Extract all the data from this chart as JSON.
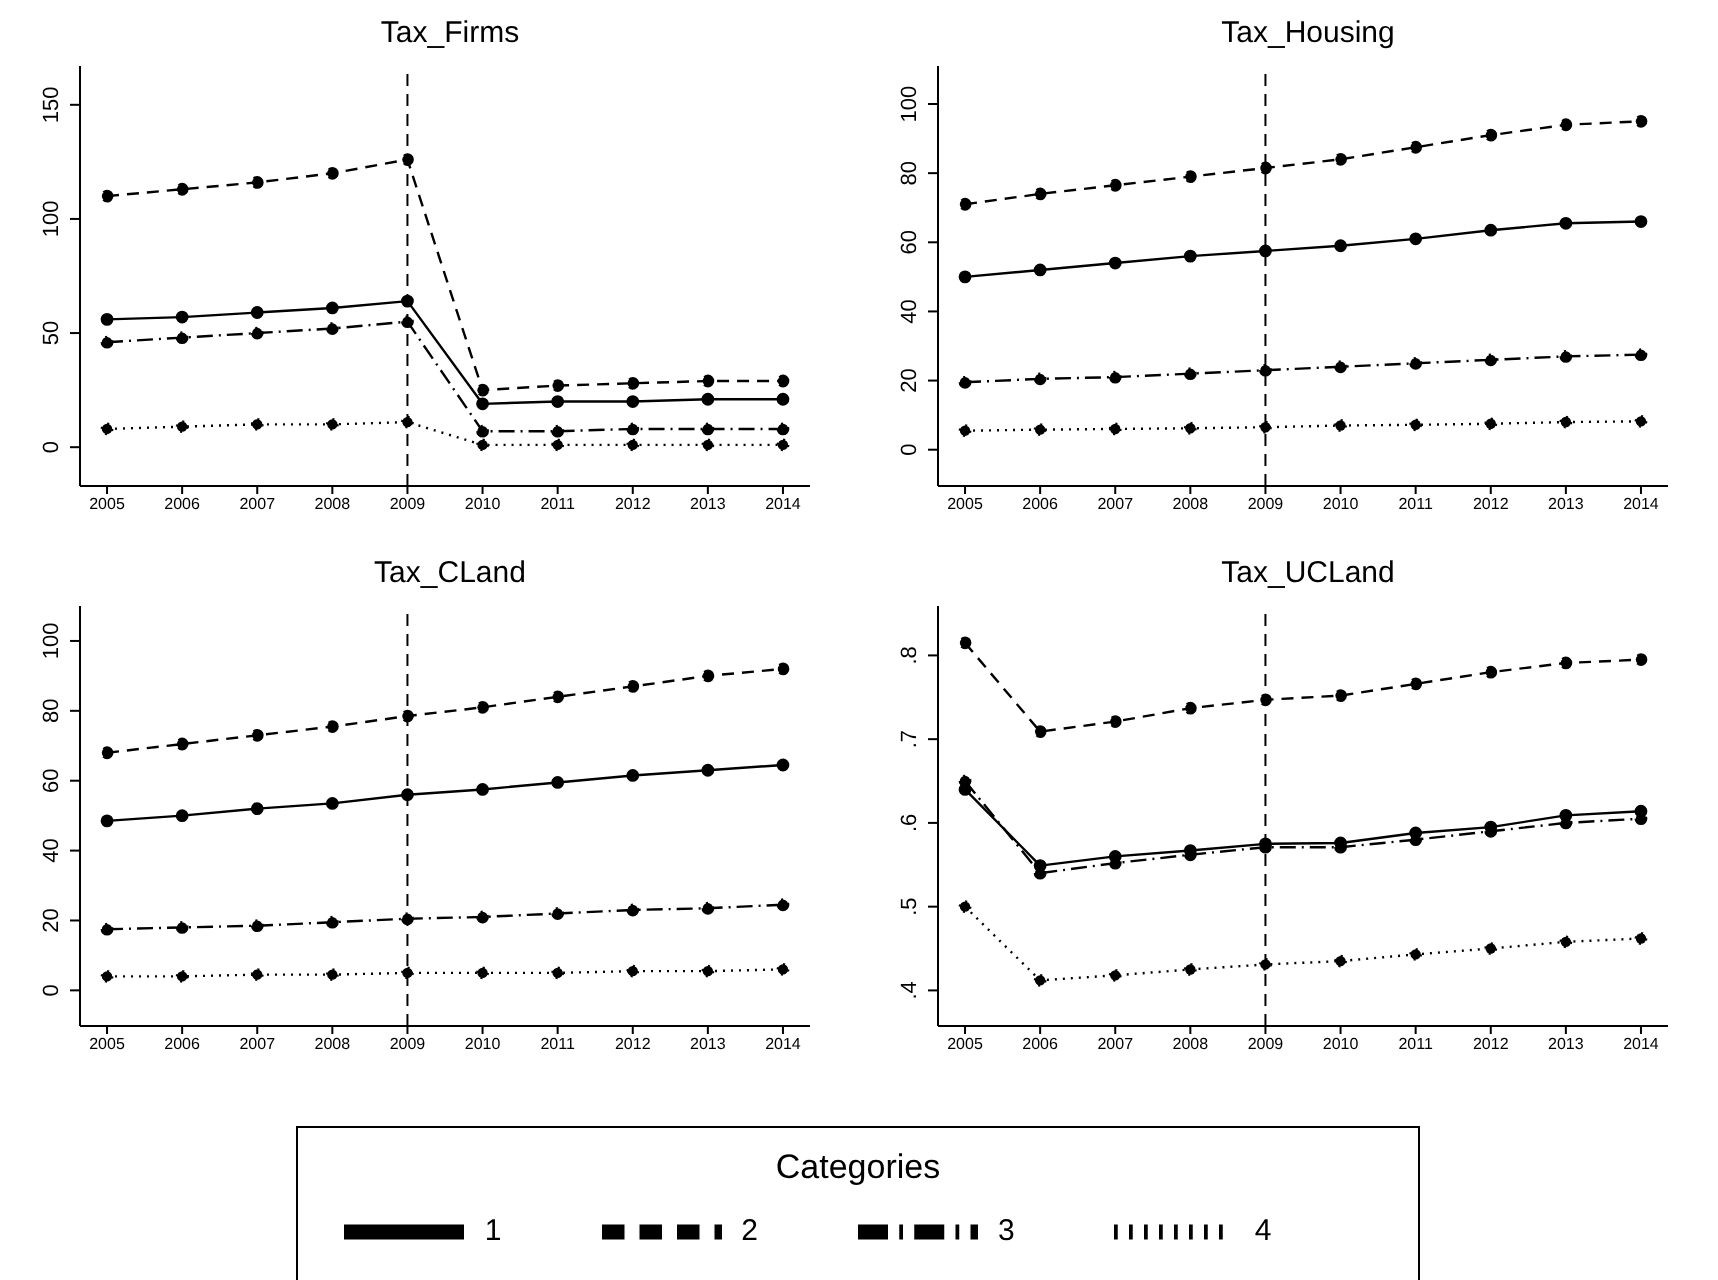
{
  "chart_data": [
    {
      "type": "line",
      "title": "Tax_Firms",
      "x": [
        2005,
        2006,
        2007,
        2008,
        2009,
        2010,
        2011,
        2012,
        2013,
        2014
      ],
      "xlim": [
        2004.64,
        2014.36
      ],
      "xticks": [
        2005,
        2006,
        2007,
        2008,
        2009,
        2010,
        2011,
        2012,
        2013,
        2014
      ],
      "ylim": [
        -17,
        167
      ],
      "yticks": [
        0,
        50,
        100,
        150
      ],
      "marker": "circle",
      "legend": "bottom",
      "legend_title": "Categories",
      "ref_lines": [
        {
          "axis": "x",
          "value": 2009,
          "color": "#000000",
          "line_style": "dashed"
        }
      ],
      "series": [
        {
          "name": "1",
          "color": "#000000",
          "line_style": "solid",
          "values": [
            56,
            57,
            59,
            61,
            64,
            19,
            20,
            20,
            21,
            21
          ]
        },
        {
          "name": "2",
          "color": "#000000",
          "line_style": "dashed",
          "values": [
            110,
            113,
            116,
            120,
            126,
            25,
            27,
            28,
            29,
            29
          ]
        },
        {
          "name": "3",
          "color": "#000000",
          "line_style": "dashdot",
          "values": [
            46,
            48,
            50,
            52,
            55,
            7,
            7,
            8,
            8,
            8
          ]
        },
        {
          "name": "4",
          "color": "#000000",
          "line_style": "dotted",
          "values": [
            8,
            9,
            10,
            10,
            11,
            1,
            1,
            1,
            1,
            1
          ]
        }
      ]
    },
    {
      "type": "line",
      "title": "Tax_Housing",
      "x": [
        2005,
        2006,
        2007,
        2008,
        2009,
        2010,
        2011,
        2012,
        2013,
        2014
      ],
      "xlim": [
        2004.64,
        2014.36
      ],
      "xticks": [
        2005,
        2006,
        2007,
        2008,
        2009,
        2010,
        2011,
        2012,
        2013,
        2014
      ],
      "ylim": [
        -10.5,
        111
      ],
      "yticks": [
        0,
        20,
        40,
        60,
        80,
        100
      ],
      "marker": "circle",
      "ref_lines": [
        {
          "axis": "x",
          "value": 2009,
          "color": "#000000",
          "line_style": "dashed"
        }
      ],
      "series": [
        {
          "color": "#000000",
          "line_style": "solid",
          "values": [
            50,
            52,
            54,
            56,
            57.5,
            59,
            61,
            63.5,
            65.5,
            66
          ]
        },
        {
          "color": "#000000",
          "line_style": "dashed",
          "values": [
            71,
            74,
            76.5,
            79,
            81.5,
            84,
            87.5,
            91,
            94,
            95
          ]
        },
        {
          "color": "#000000",
          "line_style": "dashdot",
          "values": [
            19.5,
            20.5,
            21,
            22,
            23,
            24,
            25,
            26,
            27,
            27.5
          ]
        },
        {
          "color": "#000000",
          "line_style": "dotted",
          "values": [
            5.5,
            5.8,
            6,
            6.2,
            6.5,
            7,
            7.2,
            7.5,
            8,
            8.2
          ]
        }
      ]
    },
    {
      "type": "line",
      "title": "Tax_CLand",
      "x": [
        2005,
        2006,
        2007,
        2008,
        2009,
        2010,
        2011,
        2012,
        2013,
        2014
      ],
      "xlim": [
        2004.64,
        2014.36
      ],
      "xticks": [
        2005,
        2006,
        2007,
        2008,
        2009,
        2010,
        2011,
        2012,
        2013,
        2014
      ],
      "ylim": [
        -10.2,
        110
      ],
      "yticks": [
        0,
        20,
        40,
        60,
        80,
        100
      ],
      "marker": "circle",
      "ref_lines": [
        {
          "axis": "x",
          "value": 2009,
          "color": "#000000",
          "line_style": "dashed"
        }
      ],
      "series": [
        {
          "color": "#000000",
          "line_style": "solid",
          "values": [
            48.5,
            50,
            52,
            53.5,
            56,
            57.5,
            59.5,
            61.5,
            63,
            64.5
          ]
        },
        {
          "color": "#000000",
          "line_style": "dashed",
          "values": [
            68,
            70.5,
            73,
            75.5,
            78.5,
            81,
            84,
            87,
            90,
            92
          ]
        },
        {
          "color": "#000000",
          "line_style": "dashdot",
          "values": [
            17.5,
            18,
            18.5,
            19.5,
            20.5,
            21,
            22,
            23,
            23.5,
            24.5
          ]
        },
        {
          "color": "#000000",
          "line_style": "dotted",
          "values": [
            4,
            4,
            4.5,
            4.5,
            5,
            5,
            5,
            5.5,
            5.5,
            6
          ]
        }
      ]
    },
    {
      "type": "line",
      "title": "Tax_UCLand",
      "x": [
        2005,
        2006,
        2007,
        2008,
        2009,
        2010,
        2011,
        2012,
        2013,
        2014
      ],
      "xlim": [
        2004.64,
        2014.36
      ],
      "xticks": [
        2005,
        2006,
        2007,
        2008,
        2009,
        2010,
        2011,
        2012,
        2013,
        2014
      ],
      "ylim": [
        0.3575,
        0.859
      ],
      "yticks": [
        {
          "value": 0.4,
          "label": ".4"
        },
        {
          "value": 0.5,
          "label": ".5"
        },
        {
          "value": 0.6,
          "label": ".6"
        },
        {
          "value": 0.7,
          "label": ".7"
        },
        {
          "value": 0.8,
          "label": ".8"
        }
      ],
      "marker": "circle",
      "ref_lines": [
        {
          "axis": "x",
          "value": 2009,
          "color": "#000000",
          "line_style": "dashed"
        }
      ],
      "series": [
        {
          "color": "#000000",
          "line_style": "solid",
          "values": [
            0.64,
            0.549,
            0.56,
            0.567,
            0.575,
            0.576,
            0.588,
            0.595,
            0.609,
            0.614
          ]
        },
        {
          "color": "#000000",
          "line_style": "dashed",
          "values": [
            0.815,
            0.709,
            0.721,
            0.737,
            0.747,
            0.752,
            0.766,
            0.78,
            0.791,
            0.795
          ]
        },
        {
          "color": "#000000",
          "line_style": "dashdot",
          "values": [
            0.65,
            0.54,
            0.552,
            0.562,
            0.571,
            0.571,
            0.58,
            0.59,
            0.6,
            0.605
          ]
        },
        {
          "color": "#000000",
          "line_style": "dotted",
          "values": [
            0.5,
            0.412,
            0.418,
            0.425,
            0.431,
            0.435,
            0.443,
            0.45,
            0.458,
            0.462
          ]
        }
      ]
    }
  ]
}
